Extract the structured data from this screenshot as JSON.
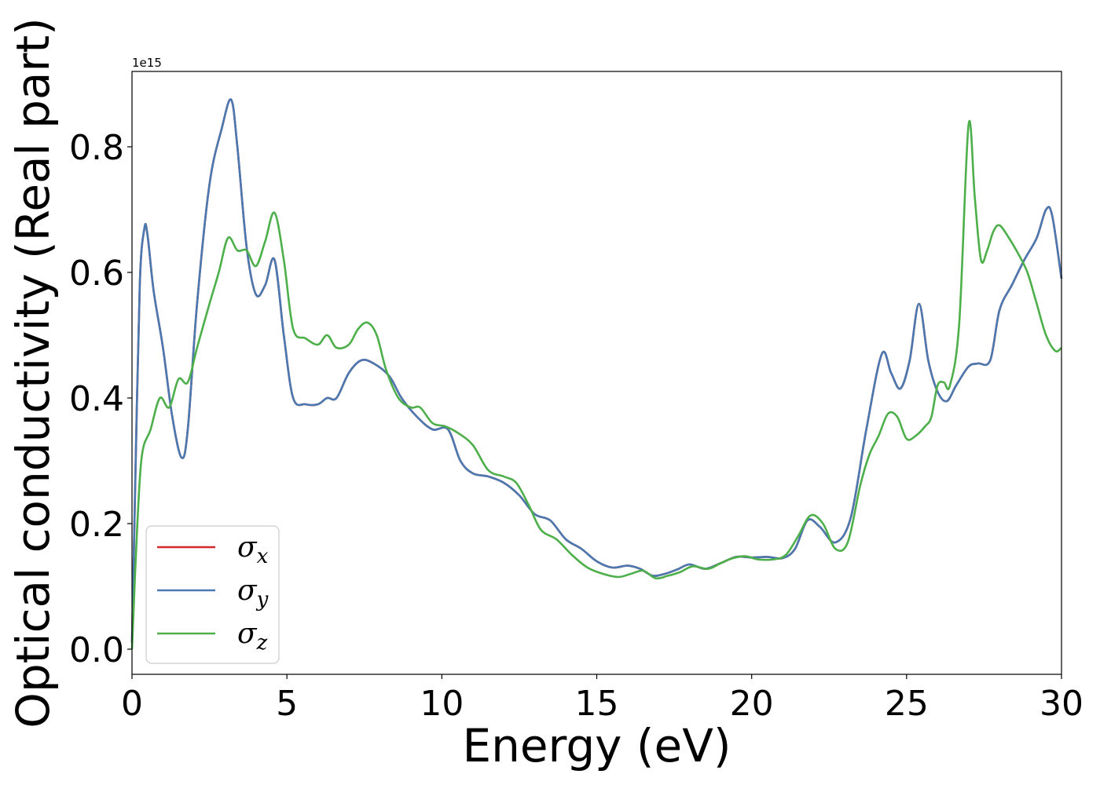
{
  "chart_data": {
    "type": "line",
    "title": "",
    "xlabel": "Energy (eV)",
    "ylabel": "Optical conductivity (Real part)",
    "y_offset_label": "1e15",
    "xlim": [
      0,
      30
    ],
    "ylim": [
      -0.04,
      0.92
    ],
    "xticks": [
      0,
      5,
      10,
      15,
      20,
      25,
      30
    ],
    "xtick_labels": [
      "0",
      "5",
      "10",
      "15",
      "20",
      "25",
      "30"
    ],
    "yticks": [
      0.0,
      0.2,
      0.4,
      0.6,
      0.8
    ],
    "ytick_labels": [
      "0.0",
      "0.2",
      "0.4",
      "0.6",
      "0.8"
    ],
    "grid": false,
    "legend_position": "lower-left",
    "series": [
      {
        "name": "σx",
        "symbol": "σ",
        "subscript": "x",
        "color": "#d62728",
        "x": [
          0,
          0.1,
          0.25,
          0.4,
          0.5,
          0.7,
          1.0,
          1.3,
          1.6,
          1.8,
          2.1,
          2.5,
          2.9,
          3.2,
          3.4,
          3.7,
          4.0,
          4.3,
          4.6,
          4.9,
          5.2,
          5.6,
          6.0,
          6.3,
          6.6,
          7.0,
          7.4,
          7.8,
          8.3,
          8.7,
          9.2,
          9.7,
          10.2,
          10.6,
          11.0,
          11.5,
          12.0,
          12.5,
          13.0,
          13.5,
          14.0,
          14.5,
          15.0,
          15.5,
          16.0,
          16.4,
          16.8,
          17.2,
          17.6,
          18.0,
          18.5,
          19.0,
          19.5,
          20.0,
          20.5,
          21.0,
          21.4,
          21.8,
          22.2,
          22.7,
          23.2,
          23.7,
          24.2,
          24.5,
          24.8,
          25.1,
          25.4,
          25.7,
          26.0,
          26.3,
          26.6,
          27.0,
          27.3,
          27.7,
          28.0,
          28.4,
          28.8,
          29.2,
          29.5,
          29.7,
          30.0
        ],
        "values": [
          0.01,
          0.25,
          0.58,
          0.67,
          0.66,
          0.57,
          0.48,
          0.37,
          0.305,
          0.35,
          0.55,
          0.74,
          0.83,
          0.875,
          0.8,
          0.64,
          0.565,
          0.58,
          0.62,
          0.5,
          0.4,
          0.39,
          0.39,
          0.4,
          0.4,
          0.44,
          0.46,
          0.455,
          0.435,
          0.4,
          0.37,
          0.35,
          0.35,
          0.3,
          0.28,
          0.275,
          0.265,
          0.245,
          0.215,
          0.205,
          0.175,
          0.16,
          0.14,
          0.13,
          0.133,
          0.128,
          0.117,
          0.12,
          0.127,
          0.135,
          0.128,
          0.137,
          0.147,
          0.146,
          0.147,
          0.145,
          0.16,
          0.205,
          0.195,
          0.17,
          0.21,
          0.35,
          0.47,
          0.44,
          0.415,
          0.46,
          0.55,
          0.46,
          0.41,
          0.395,
          0.42,
          0.45,
          0.455,
          0.46,
          0.54,
          0.58,
          0.62,
          0.655,
          0.7,
          0.69,
          0.59
        ]
      },
      {
        "name": "σy",
        "symbol": "σ",
        "subscript": "y",
        "color": "#4a78b0",
        "x": [
          0,
          0.1,
          0.25,
          0.4,
          0.5,
          0.7,
          1.0,
          1.3,
          1.6,
          1.8,
          2.1,
          2.5,
          2.9,
          3.2,
          3.4,
          3.7,
          4.0,
          4.3,
          4.6,
          4.9,
          5.2,
          5.6,
          6.0,
          6.3,
          6.6,
          7.0,
          7.4,
          7.8,
          8.3,
          8.7,
          9.2,
          9.7,
          10.2,
          10.6,
          11.0,
          11.5,
          12.0,
          12.5,
          13.0,
          13.5,
          14.0,
          14.5,
          15.0,
          15.5,
          16.0,
          16.4,
          16.8,
          17.2,
          17.6,
          18.0,
          18.5,
          19.0,
          19.5,
          20.0,
          20.5,
          21.0,
          21.4,
          21.8,
          22.2,
          22.7,
          23.2,
          23.7,
          24.2,
          24.5,
          24.8,
          25.1,
          25.4,
          25.7,
          26.0,
          26.3,
          26.6,
          27.0,
          27.3,
          27.7,
          28.0,
          28.4,
          28.8,
          29.2,
          29.5,
          29.7,
          30.0
        ],
        "values": [
          0.01,
          0.25,
          0.58,
          0.67,
          0.66,
          0.57,
          0.48,
          0.37,
          0.305,
          0.35,
          0.55,
          0.74,
          0.83,
          0.875,
          0.8,
          0.64,
          0.565,
          0.58,
          0.62,
          0.5,
          0.4,
          0.39,
          0.39,
          0.4,
          0.4,
          0.44,
          0.46,
          0.455,
          0.435,
          0.4,
          0.37,
          0.35,
          0.35,
          0.3,
          0.28,
          0.275,
          0.265,
          0.245,
          0.215,
          0.205,
          0.175,
          0.16,
          0.14,
          0.13,
          0.133,
          0.128,
          0.117,
          0.12,
          0.127,
          0.135,
          0.128,
          0.137,
          0.147,
          0.146,
          0.147,
          0.145,
          0.16,
          0.205,
          0.195,
          0.17,
          0.21,
          0.35,
          0.47,
          0.44,
          0.415,
          0.46,
          0.55,
          0.46,
          0.41,
          0.395,
          0.42,
          0.45,
          0.455,
          0.46,
          0.54,
          0.58,
          0.62,
          0.655,
          0.7,
          0.69,
          0.59
        ]
      },
      {
        "name": "σz",
        "symbol": "σ",
        "subscript": "z",
        "color": "#4daf4a",
        "x": [
          0,
          0.1,
          0.3,
          0.6,
          0.9,
          1.2,
          1.5,
          1.8,
          2.1,
          2.5,
          2.8,
          3.1,
          3.4,
          3.7,
          4.0,
          4.3,
          4.6,
          4.9,
          5.2,
          5.6,
          6.0,
          6.3,
          6.6,
          7.0,
          7.3,
          7.6,
          7.9,
          8.2,
          8.6,
          9.0,
          9.3,
          9.7,
          10.1,
          10.5,
          11.0,
          11.5,
          12.0,
          12.4,
          12.8,
          13.2,
          13.7,
          14.2,
          14.7,
          15.2,
          15.7,
          16.1,
          16.5,
          16.9,
          17.3,
          17.7,
          18.1,
          18.6,
          19.0,
          19.4,
          19.8,
          20.2,
          20.7,
          21.1,
          21.5,
          21.9,
          22.3,
          22.7,
          23.1,
          23.5,
          23.8,
          24.1,
          24.4,
          24.7,
          25.0,
          25.3,
          25.6,
          25.8,
          26.0,
          26.2,
          26.4,
          26.7,
          27.0,
          27.2,
          27.4,
          27.6,
          27.8,
          28.0,
          28.3,
          28.6,
          28.9,
          29.2,
          29.5,
          29.8,
          30.0
        ],
        "values": [
          0.0,
          0.12,
          0.3,
          0.35,
          0.4,
          0.385,
          0.43,
          0.425,
          0.48,
          0.55,
          0.6,
          0.655,
          0.635,
          0.635,
          0.61,
          0.65,
          0.695,
          0.62,
          0.51,
          0.495,
          0.485,
          0.5,
          0.48,
          0.485,
          0.51,
          0.52,
          0.5,
          0.445,
          0.4,
          0.385,
          0.385,
          0.36,
          0.355,
          0.345,
          0.325,
          0.285,
          0.275,
          0.265,
          0.23,
          0.19,
          0.175,
          0.15,
          0.13,
          0.12,
          0.115,
          0.12,
          0.125,
          0.113,
          0.117,
          0.123,
          0.132,
          0.128,
          0.137,
          0.145,
          0.148,
          0.143,
          0.143,
          0.15,
          0.18,
          0.213,
          0.2,
          0.16,
          0.17,
          0.26,
          0.31,
          0.34,
          0.375,
          0.37,
          0.335,
          0.34,
          0.355,
          0.37,
          0.42,
          0.425,
          0.42,
          0.52,
          0.835,
          0.72,
          0.62,
          0.635,
          0.665,
          0.675,
          0.655,
          0.63,
          0.6,
          0.55,
          0.5,
          0.475,
          0.48
        ]
      }
    ]
  }
}
